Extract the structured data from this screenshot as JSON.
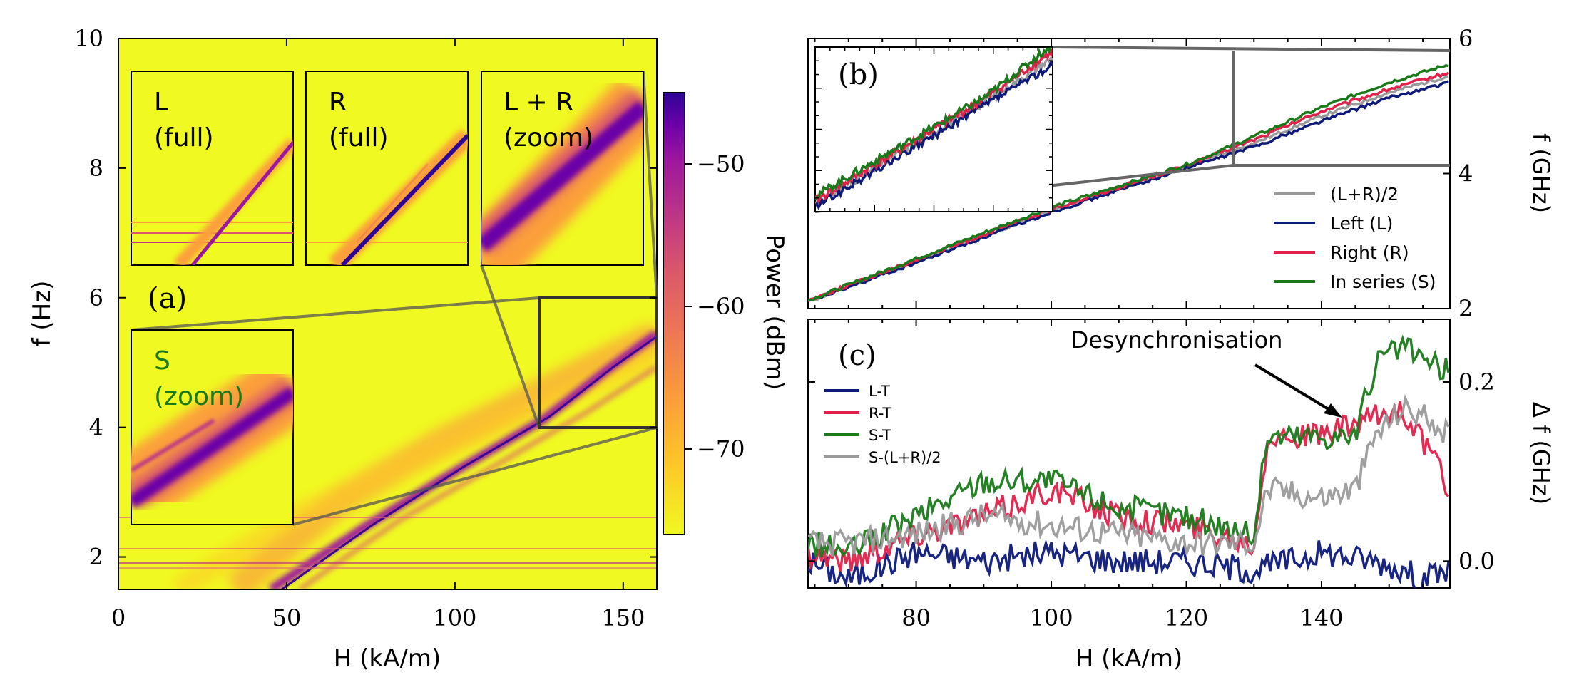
{
  "chart_data": [
    {
      "panel": "(a)",
      "type": "heatmap",
      "xlabel": "H (kA/m)",
      "ylabel": "f (Hz)",
      "xlim": [
        0,
        160
      ],
      "ylim": [
        1.5,
        10
      ],
      "xticks": [
        "0",
        "50",
        "100",
        "150"
      ],
      "yticks": [
        "2",
        "4",
        "6",
        "8",
        "10"
      ],
      "colorbar": {
        "label": "Power (dBm)",
        "range": [
          -76,
          -45
        ],
        "ticks": [
          "−50",
          "−60",
          "−70"
        ],
        "colormap": "plasma"
      },
      "main_mode": {
        "H": [
          50,
          80,
          100,
          125,
          140,
          160
        ],
        "f": [
          1.5,
          2.5,
          3.1,
          4.0,
          4.6,
          5.4
        ]
      },
      "zoom_box": {
        "H": [
          125,
          160
        ],
        "f": [
          4,
          6
        ]
      },
      "insets": [
        {
          "title_line1": "L",
          "title_line2": "(full)",
          "color": "#000000"
        },
        {
          "title_line1": "R",
          "title_line2": "(full)",
          "color": "#000000"
        },
        {
          "title_line1": "L + R",
          "title_line2": "(zoom)",
          "color": "#000000"
        },
        {
          "title_line1": "S",
          "title_line2": "(zoom)",
          "color": "#1a7a1a"
        }
      ]
    },
    {
      "panel": "(b)",
      "type": "line",
      "ylabel": "f (GHz)",
      "xlim": [
        64,
        159
      ],
      "ylim": [
        2,
        6
      ],
      "yticks": [
        "2",
        "4",
        "6"
      ],
      "legend_position": "bottom-right",
      "series": [
        {
          "name": "(L+R)/2",
          "color": "#9a9a9a",
          "x": [
            64,
            80,
            100,
            120,
            130,
            140,
            150,
            159
          ],
          "y": [
            2.1,
            2.7,
            3.45,
            4.1,
            4.45,
            4.85,
            5.2,
            5.45
          ]
        },
        {
          "name": "Left (L)",
          "color": "#0d1a7a",
          "x": [
            64,
            80,
            100,
            120,
            130,
            140,
            150,
            159
          ],
          "y": [
            2.1,
            2.68,
            3.43,
            4.08,
            4.4,
            4.78,
            5.12,
            5.35
          ]
        },
        {
          "name": "Right (R)",
          "color": "#e0214a",
          "x": [
            64,
            80,
            100,
            120,
            130,
            140,
            150,
            159
          ],
          "y": [
            2.12,
            2.72,
            3.47,
            4.12,
            4.5,
            4.92,
            5.25,
            5.5
          ]
        },
        {
          "name": "In series (S)",
          "color": "#1a7a1a",
          "x": [
            64,
            80,
            100,
            120,
            130,
            140,
            150,
            159
          ],
          "y": [
            2.12,
            2.74,
            3.5,
            4.13,
            4.55,
            4.98,
            5.35,
            5.62
          ]
        }
      ]
    },
    {
      "panel": "(c)",
      "type": "line",
      "xlabel": "H (kA/m)",
      "ylabel": "Δ f (GHz)",
      "xlim": [
        64,
        159
      ],
      "ylim": [
        -0.03,
        0.27
      ],
      "xticks": [
        "80",
        "100",
        "120",
        "140"
      ],
      "yticks": [
        "0.0",
        "0.2"
      ],
      "legend_position": "top-left",
      "annotation": {
        "text": "Desynchronisation",
        "arrow_to_H": 143,
        "arrow_to_df": 0.15
      },
      "series": [
        {
          "name": "L-T",
          "color": "#0d1a7a",
          "x": [
            64,
            70,
            80,
            90,
            100,
            110,
            120,
            130,
            140,
            148,
            152,
            155,
            159
          ],
          "y": [
            0.0,
            -0.02,
            0.01,
            0.0,
            0.01,
            0.0,
            0.0,
            -0.01,
            0.01,
            0.0,
            -0.01,
            -0.02,
            -0.01
          ]
        },
        {
          "name": "R-T",
          "color": "#e0214a",
          "x": [
            64,
            70,
            80,
            90,
            100,
            110,
            120,
            130,
            132,
            140,
            148,
            152,
            156,
            159
          ],
          "y": [
            0.01,
            0.0,
            0.03,
            0.05,
            0.08,
            0.05,
            0.04,
            0.02,
            0.14,
            0.14,
            0.16,
            0.17,
            0.12,
            0.08
          ]
        },
        {
          "name": "S-T",
          "color": "#1a7a1a",
          "x": [
            64,
            70,
            80,
            90,
            100,
            110,
            120,
            130,
            132,
            140,
            145,
            148,
            152,
            156,
            159
          ],
          "y": [
            0.02,
            0.01,
            0.05,
            0.09,
            0.09,
            0.06,
            0.05,
            0.03,
            0.14,
            0.14,
            0.14,
            0.22,
            0.24,
            0.22,
            0.21
          ]
        },
        {
          "name": "S-(L+R)/2",
          "color": "#9a9a9a",
          "x": [
            64,
            70,
            80,
            90,
            100,
            110,
            120,
            130,
            132,
            140,
            145,
            148,
            152,
            156,
            159
          ],
          "y": [
            0.02,
            0.02,
            0.03,
            0.05,
            0.04,
            0.03,
            0.02,
            0.02,
            0.08,
            0.07,
            0.08,
            0.14,
            0.17,
            0.16,
            0.14
          ]
        }
      ]
    }
  ]
}
